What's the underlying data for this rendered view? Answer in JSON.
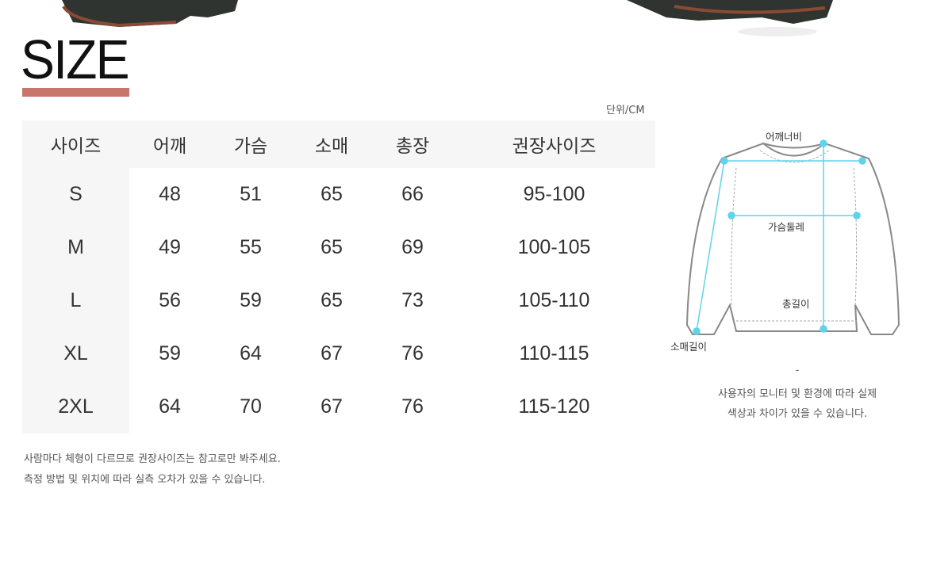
{
  "title": "SIZE",
  "unit": "단위/CM",
  "table": {
    "headers": [
      "사이즈",
      "어깨",
      "가슴",
      "소매",
      "총장",
      "권장사이즈"
    ],
    "rows": [
      [
        "S",
        "48",
        "51",
        "65",
        "66",
        "95-100"
      ],
      [
        "M",
        "49",
        "55",
        "65",
        "69",
        "100-105"
      ],
      [
        "L",
        "56",
        "59",
        "65",
        "73",
        "105-110"
      ],
      [
        "XL",
        "59",
        "64",
        "67",
        "76",
        "110-115"
      ],
      [
        "2XL",
        "64",
        "70",
        "67",
        "76",
        "115-120"
      ]
    ]
  },
  "notes": [
    "사람마다 체형이 다르므로 권장사이즈는 참고로만 봐주세요.",
    "측정 방법 및 위치에 따라 실측 오차가 있을 수 있습니다."
  ],
  "diagram": {
    "labels": {
      "shoulder": "어깨너비",
      "chest": "가슴둘레",
      "length": "총길이",
      "sleeve": "소매길이"
    },
    "dash": "-",
    "disclaimer": [
      "사용자의 모니터 및 환경에 따라 실제",
      "색상과 차이가 있을 수 있습니다."
    ],
    "measure_color": "#5fd3ec"
  },
  "colors": {
    "accent_bar": "#c8766c",
    "cell_bg": "#f6f6f6"
  }
}
